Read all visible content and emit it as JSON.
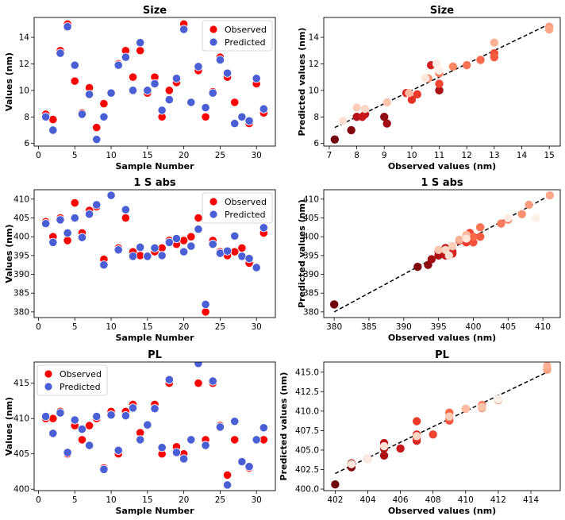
{
  "colors": {
    "observed": "#ff0000",
    "predicted": "#4a5fd6",
    "reds_light": "#fff5f0",
    "reds_dark": "#67000d",
    "diagonal": "#000000"
  },
  "chart_data": [
    {
      "type": "scatter",
      "title": "Size",
      "xlabel": "Sample Number",
      "ylabel": "Values (nm)",
      "xlim": [
        -0.6,
        32.6
      ],
      "ylim": [
        5.8,
        15.5
      ],
      "xticks": [
        0,
        5,
        10,
        15,
        20,
        25,
        30
      ],
      "yticks": [
        6,
        8,
        10,
        12,
        14
      ],
      "legend": "top-right",
      "x": [
        1,
        2,
        3,
        4,
        5,
        6,
        7,
        8,
        9,
        10,
        11,
        12,
        13,
        14,
        15,
        16,
        17,
        18,
        19,
        20,
        21,
        22,
        23,
        24,
        25,
        26,
        27,
        28,
        29,
        30,
        31
      ],
      "series": [
        {
          "name": "Observed",
          "values": [
            8.2,
            7.8,
            13.0,
            15.0,
            10.7,
            8.3,
            10.2,
            7.2,
            9.0,
            9.8,
            12.0,
            13.0,
            11.0,
            13.0,
            9.8,
            11.0,
            8.0,
            10.0,
            10.6,
            15.0,
            9.1,
            11.5,
            8.0,
            9.9,
            12.5,
            11.0,
            9.1,
            8.0,
            7.5,
            10.5,
            8.3
          ]
        },
        {
          "name": "Predicted",
          "values": [
            8.0,
            7.0,
            12.8,
            14.8,
            11.9,
            8.2,
            9.7,
            6.3,
            8.0,
            9.8,
            11.9,
            12.5,
            10.0,
            13.6,
            10.0,
            10.5,
            8.5,
            9.3,
            10.9,
            14.6,
            9.1,
            11.8,
            8.7,
            9.8,
            12.3,
            11.3,
            7.5,
            8.0,
            7.7,
            10.9,
            8.6
          ]
        }
      ]
    },
    {
      "type": "scatter",
      "title": "Size",
      "xlabel": "Observed values (nm)",
      "ylabel": "Predicted values (nm)",
      "xlim": [
        6.8,
        15.4
      ],
      "ylim": [
        5.8,
        15.5
      ],
      "xticks": [
        7,
        8,
        9,
        10,
        11,
        12,
        13,
        14,
        15
      ],
      "yticks": [
        6,
        8,
        10,
        12,
        14
      ],
      "diagonal": [
        [
          7.2,
          7.2
        ],
        [
          15,
          15
        ]
      ],
      "points": [
        [
          7.2,
          6.3
        ],
        [
          7.8,
          7.0
        ],
        [
          9.0,
          8.0
        ],
        [
          9.1,
          7.5
        ],
        [
          11.0,
          10.0
        ],
        [
          8.0,
          8.0
        ],
        [
          8.3,
          8.2
        ],
        [
          8.2,
          8.0
        ],
        [
          10.7,
          11.9
        ],
        [
          9.8,
          9.8
        ],
        [
          10.0,
          9.3
        ],
        [
          10.2,
          9.7
        ],
        [
          11.0,
          10.5
        ],
        [
          13.0,
          12.8
        ],
        [
          13.0,
          12.5
        ],
        [
          12.5,
          12.3
        ],
        [
          12.0,
          11.9
        ],
        [
          11.0,
          11.3
        ],
        [
          11.5,
          11.8
        ],
        [
          10.6,
          10.9
        ],
        [
          15.0,
          14.8
        ],
        [
          15.0,
          14.6
        ],
        [
          13.0,
          13.6
        ],
        [
          9.9,
          9.8
        ],
        [
          9.1,
          9.1
        ],
        [
          8.0,
          8.7
        ],
        [
          8.3,
          8.6
        ],
        [
          7.5,
          7.7
        ],
        [
          10.5,
          10.9
        ],
        [
          10.9,
          12.0
        ],
        [
          11.0,
          11.5
        ]
      ]
    },
    {
      "type": "scatter",
      "title": "1 S abs",
      "xlabel": "Sample Number",
      "ylabel": "Values (nm)",
      "xlim": [
        -0.6,
        32.6
      ],
      "ylim": [
        378.5,
        412.5
      ],
      "xticks": [
        0,
        5,
        10,
        15,
        20,
        25,
        30
      ],
      "yticks": [
        380,
        385,
        390,
        395,
        400,
        405,
        410
      ],
      "legend": "top-right",
      "x": [
        1,
        2,
        3,
        4,
        5,
        6,
        7,
        8,
        9,
        10,
        11,
        12,
        13,
        14,
        15,
        16,
        17,
        18,
        19,
        20,
        21,
        22,
        23,
        24,
        25,
        26,
        27,
        28,
        29,
        30,
        31
      ],
      "series": [
        {
          "name": "Observed",
          "values": [
            404,
            400,
            405,
            399,
            409,
            401,
            407,
            408,
            394,
            411,
            397,
            405,
            396,
            395,
            395,
            396,
            397,
            399,
            398,
            399,
            400,
            405,
            380,
            399,
            396,
            395,
            396,
            397,
            393,
            392,
            401
          ]
        },
        {
          "name": "Predicted",
          "values": [
            403.5,
            398.5,
            404.5,
            401,
            405,
            399.8,
            406,
            408.5,
            392.5,
            411,
            396.5,
            407.2,
            394.8,
            397.2,
            394.8,
            397,
            395,
            398.5,
            399.5,
            396,
            397.5,
            402,
            382,
            398,
            395.6,
            396.2,
            400.2,
            394.8,
            394.2,
            391.8,
            402.4
          ]
        }
      ]
    },
    {
      "type": "scatter",
      "title": "1 S abs",
      "xlabel": "Observed values (nm)",
      "ylabel": "Predicted values (nm)",
      "xlim": [
        378.5,
        412.5
      ],
      "ylim": [
        378.5,
        412.5
      ],
      "xticks": [
        380,
        385,
        390,
        395,
        400,
        405,
        410
      ],
      "yticks": [
        380,
        385,
        390,
        395,
        400,
        405,
        410
      ],
      "diagonal": [
        [
          380,
          380
        ],
        [
          411,
          411
        ]
      ],
      "points": [
        [
          380,
          382
        ],
        [
          392,
          392
        ],
        [
          393.5,
          392.5
        ],
        [
          394,
          394
        ],
        [
          395,
          395
        ],
        [
          395,
          396
        ],
        [
          396,
          395
        ],
        [
          396,
          397
        ],
        [
          397,
          396
        ],
        [
          397,
          395.5
        ],
        [
          398,
          399
        ],
        [
          399,
          398.5
        ],
        [
          399.5,
          401
        ],
        [
          400,
          398.5
        ],
        [
          401,
          400
        ],
        [
          400,
          400
        ],
        [
          401,
          402.5
        ],
        [
          404,
          403.5
        ],
        [
          405,
          404.5
        ],
        [
          407,
          406
        ],
        [
          408,
          408.5
        ],
        [
          411,
          411
        ],
        [
          398,
          399.2
        ],
        [
          399,
          400.5
        ],
        [
          395,
          396.5
        ],
        [
          397,
          397.5
        ],
        [
          396,
          396.5
        ],
        [
          396.5,
          395
        ],
        [
          399,
          399.5
        ],
        [
          405,
          405
        ],
        [
          409,
          405
        ]
      ]
    },
    {
      "type": "scatter",
      "title": "PL",
      "xlabel": "Sample Number",
      "ylabel": "Values (nm)",
      "xlim": [
        -0.6,
        32.6
      ],
      "ylim": [
        399.8,
        418.0
      ],
      "xticks": [
        0,
        5,
        10,
        15,
        20,
        25,
        30
      ],
      "yticks": [
        400,
        405,
        410,
        415
      ],
      "legend": "top-left",
      "x": [
        1,
        2,
        3,
        4,
        5,
        6,
        7,
        8,
        9,
        10,
        11,
        12,
        13,
        14,
        15,
        16,
        17,
        18,
        19,
        20,
        21,
        22,
        23,
        24,
        25,
        26,
        27,
        28,
        29,
        30,
        31
      ],
      "series": [
        {
          "name": "Observed",
          "values": [
            410,
            410,
            411,
            405,
            409,
            407,
            409,
            410,
            403,
            411,
            405,
            411,
            412,
            408,
            409,
            412,
            405,
            415,
            406,
            405,
            407,
            415,
            407,
            415,
            409,
            402,
            407,
            404,
            403,
            407,
            407
          ]
        },
        {
          "name": "Predicted",
          "values": [
            410.3,
            407.9,
            410.8,
            405.2,
            409.8,
            408.5,
            406.2,
            410.3,
            402.8,
            410.5,
            405.5,
            410.4,
            411.5,
            407.0,
            409.1,
            411.4,
            405.9,
            415.5,
            405.2,
            404.3,
            407.0,
            417.8,
            406.2,
            415.3,
            408.8,
            400.6,
            409.6,
            403.9,
            403.2,
            407.0,
            408.7
          ]
        }
      ]
    },
    {
      "type": "scatter",
      "title": "PL",
      "xlabel": "Observed values (nm)",
      "ylabel": "Predicted values (nm)",
      "xlim": [
        401.3,
        415.8
      ],
      "ylim": [
        399.8,
        416.3
      ],
      "xticks": [
        402,
        404,
        406,
        408,
        410,
        412,
        414
      ],
      "yticks": [
        400.0,
        402.5,
        405.0,
        407.5,
        410.0,
        412.5,
        415.0
      ],
      "ytick_labels": [
        "400.0",
        "402.5",
        "405.0",
        "407.5",
        "410.0",
        "412.5",
        "415.0"
      ],
      "diagonal": [
        [
          402,
          402
        ],
        [
          415,
          415
        ]
      ],
      "points": [
        [
          402,
          400.6
        ],
        [
          403,
          402.8
        ],
        [
          403,
          403.3
        ],
        [
          404,
          403.9
        ],
        [
          405,
          404.3
        ],
        [
          405,
          405.2
        ],
        [
          405,
          405.9
        ],
        [
          406,
          405.2
        ],
        [
          407,
          406.2
        ],
        [
          407,
          407.0
        ],
        [
          407,
          406.5
        ],
        [
          407,
          408.7
        ],
        [
          408,
          407.0
        ],
        [
          409,
          408.8
        ],
        [
          409,
          409.1
        ],
        [
          409,
          409.8
        ],
        [
          410,
          410.3
        ],
        [
          411,
          410.4
        ],
        [
          411,
          410.8
        ],
        [
          412,
          411.4
        ],
        [
          415,
          415.3
        ],
        [
          415,
          415.5
        ],
        [
          415,
          415.8
        ],
        [
          410,
          410.3
        ],
        [
          411,
          410.5
        ],
        [
          409,
          409.3
        ],
        [
          407,
          406.8
        ],
        [
          405,
          405.5
        ],
        [
          403,
          403.2
        ],
        [
          404,
          403.9
        ],
        [
          412,
          411.5
        ]
      ]
    }
  ]
}
